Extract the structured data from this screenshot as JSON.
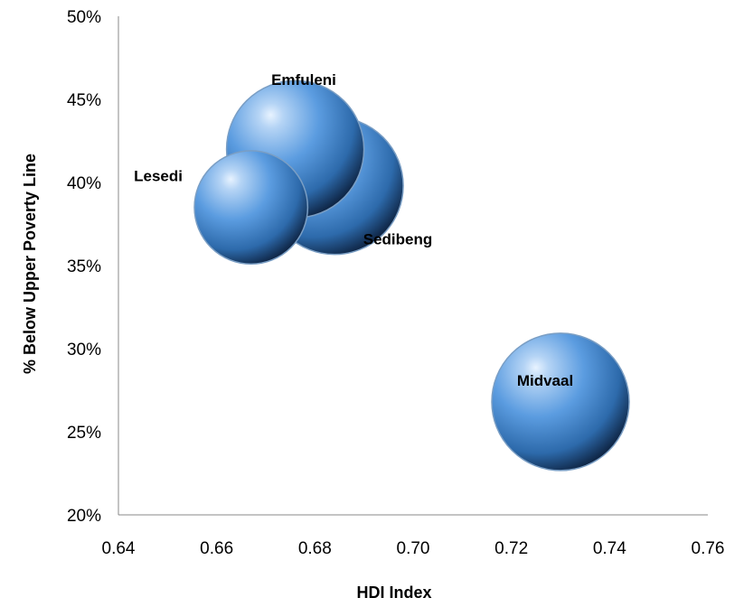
{
  "chart_data": {
    "type": "bubble",
    "title": "",
    "xlabel": "HDI Index",
    "ylabel": "% Below Upper Poverty Line",
    "xlim": [
      0.64,
      0.76
    ],
    "ylim": [
      0.2,
      0.5
    ],
    "x_ticks": [
      "0.64",
      "0.66",
      "0.68",
      "0.70",
      "0.72",
      "0.74",
      "0.76"
    ],
    "y_ticks": [
      "20%",
      "25%",
      "30%",
      "35%",
      "40%",
      "45%",
      "50%"
    ],
    "x_tick_values": [
      0.64,
      0.66,
      0.68,
      0.7,
      0.72,
      0.74,
      0.76
    ],
    "y_tick_values": [
      0.2,
      0.25,
      0.3,
      0.35,
      0.4,
      0.45,
      0.5
    ],
    "grid": false,
    "legend": "none",
    "bubble_color": "#4a8bd1",
    "points": [
      {
        "name": "Sedibeng",
        "x": 0.684,
        "y": 0.398,
        "size": 1.0
      },
      {
        "name": "Emfuleni",
        "x": 0.676,
        "y": 0.42,
        "size": 1.0
      },
      {
        "name": "Lesedi",
        "x": 0.667,
        "y": 0.385,
        "size": 0.68
      },
      {
        "name": "Midvaal",
        "x": 0.73,
        "y": 0.268,
        "size": 1.0
      }
    ]
  }
}
